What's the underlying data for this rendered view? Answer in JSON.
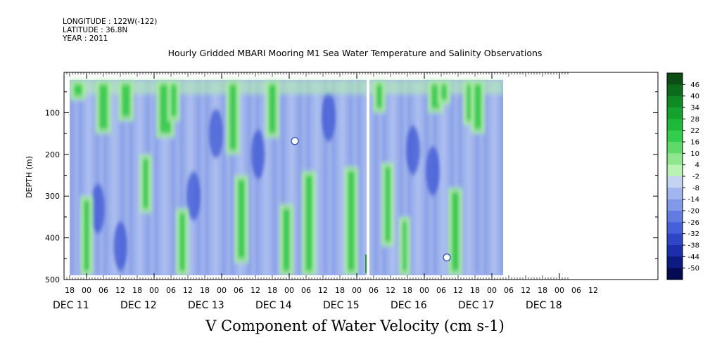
{
  "header": {
    "longitude": "LONGITUDE : 122W(-122)",
    "latitude": "LATITUDE : 36.8N",
    "year": "YEAR : 2011",
    "title": "Hourly Gridded MBARI Mooring M1 Sea Water Temperature and Salinity Observations"
  },
  "chart_data": {
    "type": "heatmap",
    "title": "Hourly Gridded MBARI Mooring M1 Sea Water Temperature and Salinity Observations",
    "subtitle": "V Component of Water Velocity (cm s-1)",
    "ylabel": "DEPTH (m)",
    "xlabel": "",
    "y_ticks": [
      100,
      200,
      300,
      400,
      500
    ],
    "ylim": [
      500,
      20
    ],
    "y_inverted": true,
    "x_range_hours": [
      "DEC 11 18:00",
      "DEC 18 18:00"
    ],
    "x_hour_labels": [
      "18",
      "00",
      "06",
      "12",
      "18",
      "00",
      "06",
      "12",
      "18",
      "00",
      "06",
      "12",
      "18",
      "00",
      "06",
      "12",
      "18",
      "00",
      "06",
      "12",
      "18",
      "00",
      "06",
      "12",
      "18",
      "00",
      "06",
      "12",
      "18",
      "00",
      "06",
      "12"
    ],
    "x_date_labels": [
      "DEC 11",
      "DEC 12",
      "DEC 13",
      "DEC 14",
      "DEC 15",
      "DEC 16",
      "DEC 17",
      "DEC 18"
    ],
    "data_start_hour": 18,
    "data_end_hour": 172,
    "depth_data_range": [
      22,
      490
    ],
    "gap_hours": [
      123.5,
      124.5
    ],
    "green_columns": [
      {
        "hour": 21,
        "top": 22,
        "bottom": 70,
        "w": 3
      },
      {
        "hour": 24,
        "top": 300,
        "bottom": 490,
        "w": 2
      },
      {
        "hour": 30,
        "top": 22,
        "bottom": 150,
        "w": 3
      },
      {
        "hour": 38,
        "top": 22,
        "bottom": 120,
        "w": 3
      },
      {
        "hour": 45,
        "top": 200,
        "bottom": 340,
        "w": 2
      },
      {
        "hour": 52,
        "top": 22,
        "bottom": 160,
        "w": 4
      },
      {
        "hour": 55,
        "top": 22,
        "bottom": 120,
        "w": 2
      },
      {
        "hour": 58,
        "top": 330,
        "bottom": 490,
        "w": 2
      },
      {
        "hour": 76,
        "top": 22,
        "bottom": 200,
        "w": 2.5
      },
      {
        "hour": 79,
        "top": 250,
        "bottom": 460,
        "w": 2.5
      },
      {
        "hour": 90,
        "top": 22,
        "bottom": 160,
        "w": 2.5
      },
      {
        "hour": 95,
        "top": 320,
        "bottom": 490,
        "w": 2.5
      },
      {
        "hour": 103,
        "top": 240,
        "bottom": 490,
        "w": 2.5
      },
      {
        "hour": 118,
        "top": 230,
        "bottom": 490,
        "w": 2.5
      },
      {
        "hour": 128,
        "top": 22,
        "bottom": 100,
        "w": 2
      },
      {
        "hour": 131,
        "top": 220,
        "bottom": 420,
        "w": 2
      },
      {
        "hour": 137,
        "top": 350,
        "bottom": 490,
        "w": 1.5
      },
      {
        "hour": 148,
        "top": 22,
        "bottom": 100,
        "w": 3
      },
      {
        "hour": 151,
        "top": 22,
        "bottom": 80,
        "w": 2
      },
      {
        "hour": 155,
        "top": 280,
        "bottom": 490,
        "w": 2.5
      },
      {
        "hour": 160,
        "top": 22,
        "bottom": 130,
        "w": 2
      },
      {
        "hour": 163,
        "top": 22,
        "bottom": 150,
        "w": 2.5
      }
    ],
    "dark_blue_spots": [
      {
        "hour": 28,
        "depth": 330
      },
      {
        "hour": 36,
        "depth": 420
      },
      {
        "hour": 62,
        "depth": 300
      },
      {
        "hour": 85,
        "depth": 200
      },
      {
        "hour": 110,
        "depth": 110
      },
      {
        "hour": 140,
        "depth": 190
      },
      {
        "hour": 147,
        "depth": 240
      },
      {
        "hour": 70,
        "depth": 150
      }
    ],
    "missing_points": [
      {
        "hour": 98,
        "depth": 168
      },
      {
        "hour": 152,
        "depth": 447
      }
    ],
    "colorbar": {
      "labels": [
        "46",
        "40",
        "34",
        "28",
        "22",
        "16",
        "10",
        "4",
        "-2",
        "-8",
        "-14",
        "-20",
        "-26",
        "-32",
        "-38",
        "-44",
        "-50"
      ],
      "colors": [
        "#0b4d14",
        "#0c6a1c",
        "#0f8a25",
        "#13a22e",
        "#1db93a",
        "#34cc4c",
        "#5fda6a",
        "#8fe68f",
        "#b9f2b3",
        "#c5d3f3",
        "#a3b5ee",
        "#8298e8",
        "#627ce2",
        "#4560d8",
        "#2e45c6",
        "#1c2eaa",
        "#0c1a82",
        "#050a55"
      ]
    }
  }
}
